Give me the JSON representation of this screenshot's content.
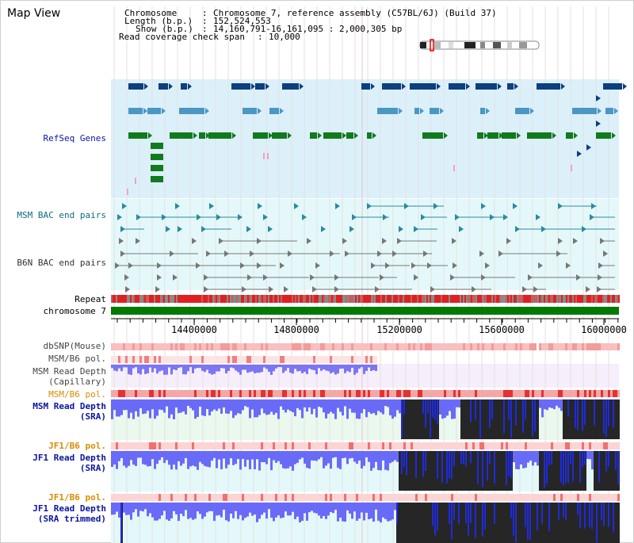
{
  "view_title": "Map View",
  "header": {
    "chromosome_key": "Chromosome",
    "chromosome_val": "Chromosome 7, reference assembly (C57BL/6J) (Build 37)",
    "length_key": "Length (b.p.)",
    "length_val": "152,524,553",
    "show_key": "Show (b.p.)",
    "show_val": "14,160,791-16,161,095 : 2,000,305 bp",
    "coverage_key": "Read coverage check span",
    "coverage_val": "10,000"
  },
  "tracks": {
    "refseq": "RefSeq Genes",
    "msm_bac": "MSM BAC end pairs",
    "b6n_bac": "B6N BAC end pairs",
    "repeat": "Repeat",
    "chromosome": "chromosome 7",
    "dbsnp": "dbSNP(Mouse)",
    "msm_b6_pol_1": "MSM/B6 pol.",
    "msm_depth_cap_1": "MSM Read Depth",
    "msm_depth_cap_2": "(Capillary)",
    "msm_b6_pol_2": "MSM/B6 pol.",
    "msm_depth_sra_1": "MSM Read Depth",
    "msm_depth_sra_2": "(SRA)",
    "jf1_b6_pol_1": "JF1/B6 pol.",
    "jf1_depth_sra_1": "JF1 Read Depth",
    "jf1_depth_sra_2": "(SRA)",
    "jf1_b6_pol_2": "JF1/B6 pol.",
    "jf1_depth_trim_1": "JF1 Read Depth",
    "jf1_depth_trim_2": "(SRA trimmed)"
  },
  "ruler": {
    "ticks": [
      "14400000",
      "14800000",
      "15200000",
      "15600000",
      "16000000"
    ]
  },
  "colors": {
    "refseq_bg": "#dcf0fa",
    "bac_bg": "#e4f8fa",
    "label_navy": "#0b14a0",
    "label_teal": "#0a6e7e",
    "label_orange": "#d98c00",
    "chromosome_green": "#007a00",
    "repeat_red": "#e02020",
    "depth_blue": "#6a6af8",
    "depth_black": "#262626"
  }
}
